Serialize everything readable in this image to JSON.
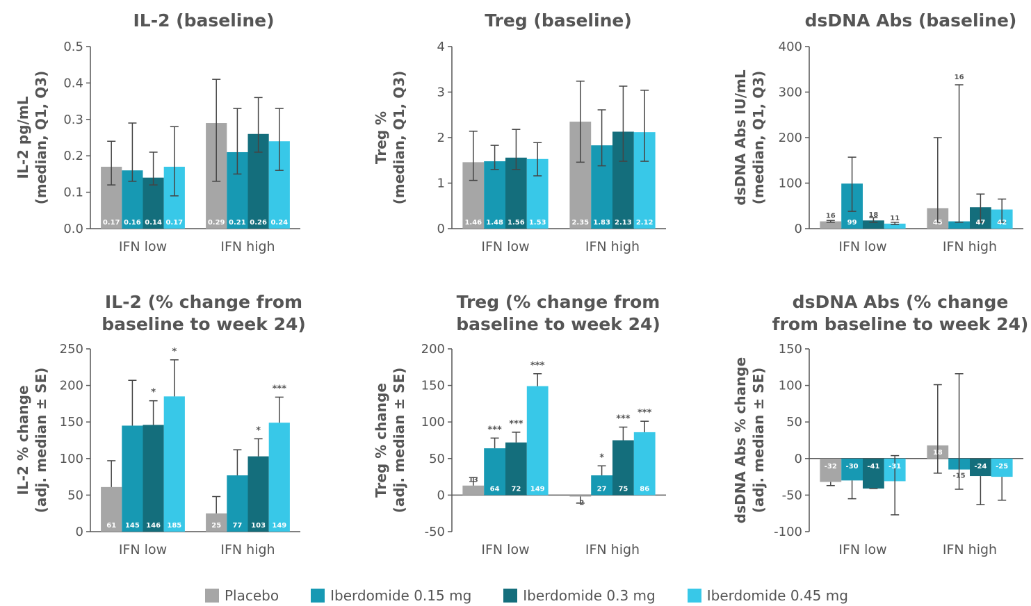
{
  "legend": [
    {
      "label": "Placebo",
      "color": "#a6a6a6"
    },
    {
      "label": "Iberdomide 0.15 mg",
      "color": "#1799b3"
    },
    {
      "label": "Iberdomide 0.3 mg",
      "color": "#146e7c"
    },
    {
      "label": "Iberdomide 0.45 mg",
      "color": "#38c8e8"
    }
  ],
  "chart_data": [
    {
      "type": "bar",
      "title": [
        "IL-2 (baseline)"
      ],
      "ylabel": [
        "IL-2 pg/mL",
        "(median, Q1, Q3)"
      ],
      "ylim": [
        0,
        0.5
      ],
      "yticks": [
        0.0,
        0.1,
        0.2,
        0.3,
        0.4,
        0.5
      ],
      "ytick_labels": [
        "0.0",
        "0.1",
        "0.2",
        "0.3",
        "0.4",
        "0.5"
      ],
      "categories": [
        "IFN low",
        "IFN high"
      ],
      "series": [
        {
          "name": "Placebo",
          "values": [
            0.17,
            0.29
          ],
          "err_low": [
            0.12,
            0.13
          ],
          "err_high": [
            0.24,
            0.41
          ],
          "labels": [
            "0.17",
            "0.29"
          ],
          "stars": [
            "",
            ""
          ]
        },
        {
          "name": "Iberdomide 0.15 mg",
          "values": [
            0.16,
            0.21
          ],
          "err_low": [
            0.13,
            0.15
          ],
          "err_high": [
            0.29,
            0.33
          ],
          "labels": [
            "0.16",
            "0.21"
          ],
          "stars": [
            "",
            ""
          ]
        },
        {
          "name": "Iberdomide 0.3 mg",
          "values": [
            0.14,
            0.26
          ],
          "err_low": [
            0.12,
            0.21
          ],
          "err_high": [
            0.21,
            0.36
          ],
          "labels": [
            "0.14",
            "0.26"
          ],
          "stars": [
            "",
            ""
          ]
        },
        {
          "name": "Iberdomide 0.45 mg",
          "values": [
            0.17,
            0.24
          ],
          "err_low": [
            0.09,
            0.16
          ],
          "err_high": [
            0.28,
            0.33
          ],
          "labels": [
            "0.17",
            "0.24"
          ],
          "stars": [
            "",
            ""
          ]
        }
      ]
    },
    {
      "type": "bar",
      "title": [
        "Treg (baseline)"
      ],
      "ylabel": [
        "Treg %",
        "(median, Q1, Q3)"
      ],
      "ylim": [
        0,
        4
      ],
      "yticks": [
        0,
        1,
        2,
        3,
        4
      ],
      "ytick_labels": [
        "0",
        "1",
        "2",
        "3",
        "4"
      ],
      "categories": [
        "IFN low",
        "IFN high"
      ],
      "series": [
        {
          "name": "Placebo",
          "values": [
            1.46,
            2.35
          ],
          "err_low": [
            1.06,
            1.46
          ],
          "err_high": [
            2.14,
            3.24
          ],
          "labels": [
            "1.46",
            "2.35"
          ],
          "stars": [
            "",
            ""
          ]
        },
        {
          "name": "Iberdomide 0.15 mg",
          "values": [
            1.48,
            1.83
          ],
          "err_low": [
            1.3,
            1.38
          ],
          "err_high": [
            1.83,
            2.61
          ],
          "labels": [
            "1.48",
            "1.83"
          ],
          "stars": [
            "",
            ""
          ]
        },
        {
          "name": "Iberdomide 0.3 mg",
          "values": [
            1.56,
            2.13
          ],
          "err_low": [
            1.3,
            1.48
          ],
          "err_high": [
            2.18,
            3.13
          ],
          "labels": [
            "1.56",
            "2.13"
          ],
          "stars": [
            "",
            ""
          ]
        },
        {
          "name": "Iberdomide 0.45 mg",
          "values": [
            1.53,
            2.12
          ],
          "err_low": [
            1.16,
            1.48
          ],
          "err_high": [
            1.89,
            3.04
          ],
          "labels": [
            "1.53",
            "2.12"
          ],
          "stars": [
            "",
            ""
          ]
        }
      ]
    },
    {
      "type": "bar",
      "title": [
        "dsDNA Abs (baseline)"
      ],
      "ylabel": [
        "dsDNA Abs IU/mL",
        "(median, Q1, Q3)"
      ],
      "ylim": [
        0,
        400
      ],
      "yticks": [
        0,
        100,
        200,
        300,
        400
      ],
      "ytick_labels": [
        "0",
        "100",
        "200",
        "300",
        "400"
      ],
      "categories": [
        "IFN low",
        "IFN high"
      ],
      "series": [
        {
          "name": "Placebo",
          "values": [
            16,
            45
          ],
          "err_low": [
            14,
            14
          ],
          "err_high": [
            18,
            200
          ],
          "labels": [
            "16",
            "45"
          ],
          "stars": [
            "",
            ""
          ]
        },
        {
          "name": "Iberdomide 0.15 mg",
          "values": [
            99,
            16
          ],
          "err_low": [
            38,
            14
          ],
          "err_high": [
            157,
            316
          ],
          "labels": [
            "99",
            "16"
          ],
          "stars": [
            "",
            ""
          ]
        },
        {
          "name": "Iberdomide 0.3 mg",
          "values": [
            18,
            47
          ],
          "err_low": [
            14,
            14
          ],
          "err_high": [
            24,
            76
          ],
          "labels": [
            "18",
            "47"
          ],
          "stars": [
            "",
            ""
          ]
        },
        {
          "name": "Iberdomide 0.45 mg",
          "values": [
            11,
            42
          ],
          "err_low": [
            9,
            14
          ],
          "err_high": [
            14,
            65
          ],
          "labels": [
            "11",
            "42"
          ],
          "stars": [
            "",
            ""
          ]
        }
      ]
    },
    {
      "type": "bar",
      "title": [
        "IL-2 (% change from",
        "baseline to week 24)"
      ],
      "ylabel": [
        "IL-2 % change",
        "(adj. median ± SE)"
      ],
      "ylim": [
        0,
        250
      ],
      "yticks": [
        0,
        50,
        100,
        150,
        200,
        250
      ],
      "ytick_labels": [
        "0",
        "50",
        "100",
        "150",
        "200",
        "250"
      ],
      "categories": [
        "IFN low",
        "IFN high"
      ],
      "series": [
        {
          "name": "Placebo",
          "values": [
            61,
            25
          ],
          "err_low": [
            61,
            25
          ],
          "err_high": [
            97,
            48
          ],
          "labels": [
            "61",
            "25"
          ],
          "stars": [
            "",
            ""
          ]
        },
        {
          "name": "Iberdomide 0.15 mg",
          "values": [
            145,
            77
          ],
          "err_low": [
            145,
            77
          ],
          "err_high": [
            207,
            112
          ],
          "labels": [
            "145",
            "77"
          ],
          "stars": [
            "",
            ""
          ]
        },
        {
          "name": "Iberdomide 0.3 mg",
          "values": [
            146,
            103
          ],
          "err_low": [
            146,
            103
          ],
          "err_high": [
            179,
            127
          ],
          "labels": [
            "146",
            "103"
          ],
          "stars": [
            "*",
            "*"
          ]
        },
        {
          "name": "Iberdomide 0.45 mg",
          "values": [
            185,
            149
          ],
          "err_low": [
            185,
            149
          ],
          "err_high": [
            235,
            184
          ],
          "labels": [
            "185",
            "149"
          ],
          "stars": [
            "*",
            "***"
          ]
        }
      ]
    },
    {
      "type": "bar",
      "title": [
        "Treg (% change from",
        "baseline to week 24)"
      ],
      "ylabel": [
        "Treg % change",
        "(adj. median ± SE)"
      ],
      "ylim": [
        -50,
        200
      ],
      "yticks": [
        -50,
        0,
        50,
        100,
        150,
        200
      ],
      "ytick_labels": [
        "-50",
        "0",
        "50",
        "100",
        "150",
        "200"
      ],
      "categories": [
        "IFN low",
        "IFN high"
      ],
      "series": [
        {
          "name": "Placebo",
          "values": [
            13,
            -2
          ],
          "err_low": [
            13,
            -11
          ],
          "err_high": [
            24,
            -2
          ],
          "labels": [
            "13",
            "-2"
          ],
          "stars": [
            "",
            ""
          ]
        },
        {
          "name": "Iberdomide 0.15 mg",
          "values": [
            64,
            27
          ],
          "err_low": [
            64,
            27
          ],
          "err_high": [
            78,
            40
          ],
          "labels": [
            "64",
            "27"
          ],
          "stars": [
            "***",
            "*"
          ]
        },
        {
          "name": "Iberdomide 0.3 mg",
          "values": [
            72,
            75
          ],
          "err_low": [
            72,
            75
          ],
          "err_high": [
            86,
            93
          ],
          "labels": [
            "72",
            "75"
          ],
          "stars": [
            "***",
            "***"
          ]
        },
        {
          "name": "Iberdomide 0.45 mg",
          "values": [
            149,
            86
          ],
          "err_low": [
            149,
            86
          ],
          "err_high": [
            166,
            101
          ],
          "labels": [
            "149",
            "86"
          ],
          "stars": [
            "***",
            "***"
          ]
        }
      ]
    },
    {
      "type": "bar",
      "title": [
        "dsDNA Abs (% change",
        "from baseline to week 24)"
      ],
      "ylabel": [
        "dsDNA Abs % change",
        "(adj. median ± SE)"
      ],
      "ylim": [
        -100,
        150
      ],
      "yticks": [
        -100,
        -50,
        0,
        50,
        100,
        150
      ],
      "ytick_labels": [
        "-100",
        "-50",
        "0",
        "50",
        "100",
        "150"
      ],
      "categories": [
        "IFN low",
        "IFN high"
      ],
      "series": [
        {
          "name": "Placebo",
          "values": [
            -32,
            18
          ],
          "err_low": [
            -37,
            -20
          ],
          "err_high": [
            -32,
            101
          ],
          "labels": [
            "-32",
            "18"
          ],
          "stars": [
            "",
            ""
          ]
        },
        {
          "name": "Iberdomide 0.15 mg",
          "values": [
            -30,
            -15
          ],
          "err_low": [
            -55,
            -42
          ],
          "err_high": [
            -30,
            116
          ],
          "labels": [
            "-30",
            "-15"
          ],
          "stars": [
            "",
            ""
          ]
        },
        {
          "name": "Iberdomide 0.3 mg",
          "values": [
            -41,
            -24
          ],
          "err_low": [
            -41,
            -63
          ],
          "err_high": [
            -41,
            -24
          ],
          "labels": [
            "-41",
            "-24"
          ],
          "stars": [
            "",
            ""
          ]
        },
        {
          "name": "Iberdomide 0.45 mg",
          "values": [
            -31,
            -25
          ],
          "err_low": [
            -77,
            -57
          ],
          "err_high": [
            4,
            -25
          ],
          "labels": [
            "-31",
            "-25"
          ],
          "stars": [
            "",
            ""
          ]
        }
      ]
    }
  ]
}
